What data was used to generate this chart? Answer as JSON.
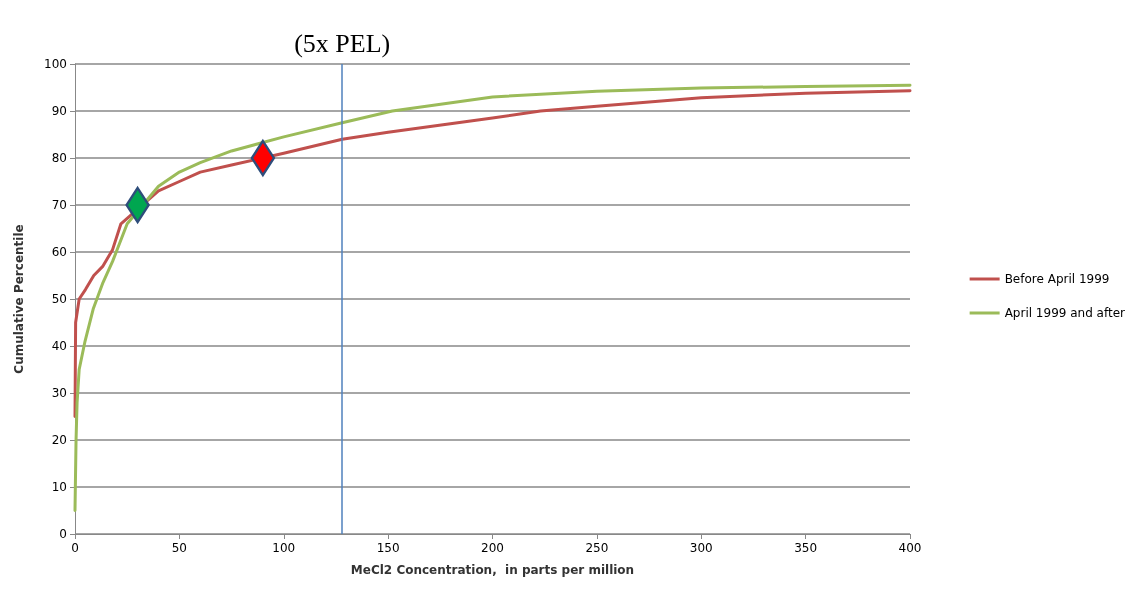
{
  "chart_data": {
    "type": "line",
    "xlabel": "MeCl2 Concentration,  in parts per million",
    "ylabel": "Cumulative Percentile",
    "xlim": [
      0,
      400
    ],
    "xticks": [
      0,
      50,
      100,
      150,
      200,
      250,
      300,
      350,
      400
    ],
    "ylim": [
      0,
      100
    ],
    "yticks": [
      0,
      10,
      20,
      30,
      40,
      50,
      60,
      70,
      80,
      90,
      100
    ],
    "grid": "y",
    "legend": "right",
    "marker": "none",
    "line_style": "solid",
    "series": [
      {
        "name": "Before April 1999",
        "color": "#c0504d",
        "x": [
          0,
          0.3,
          2,
          5,
          9,
          13.4,
          18,
          22,
          40,
          50,
          60,
          75,
          90,
          100,
          128,
          150,
          200,
          223,
          250,
          300,
          350,
          400
        ],
        "values": [
          25,
          45,
          50,
          52,
          55,
          57,
          60.5,
          66,
          73,
          75,
          77,
          78.5,
          80,
          81,
          84,
          85.5,
          88.5,
          90,
          91,
          92.8,
          93.8,
          94.3
        ]
      },
      {
        "name": "April 1999 and after",
        "color": "#9bbb59",
        "x": [
          0,
          0.5,
          1,
          2,
          4.8,
          8.8,
          13.4,
          18,
          25,
          40,
          50,
          60,
          75,
          100,
          128,
          152,
          200,
          250,
          300,
          350,
          400
        ],
        "values": [
          5,
          20,
          28,
          35,
          41,
          48,
          53.5,
          58,
          66,
          74,
          77,
          79,
          81.5,
          84.5,
          87.5,
          90,
          93,
          94.2,
          94.9,
          95.2,
          95.5
        ]
      },
      {
        "type": "scatter",
        "marker": "diamond",
        "color": "#00a650",
        "x": [
          30
        ],
        "values": [
          70
        ]
      },
      {
        "type": "scatter",
        "marker": "diamond",
        "color": "#ff0000",
        "x": [
          90
        ],
        "values": [
          80
        ]
      }
    ],
    "ref_lines": [
      {
        "axis": "x",
        "value": 128,
        "label": "(5x PEL)",
        "color": "#4f81bd"
      }
    ]
  }
}
